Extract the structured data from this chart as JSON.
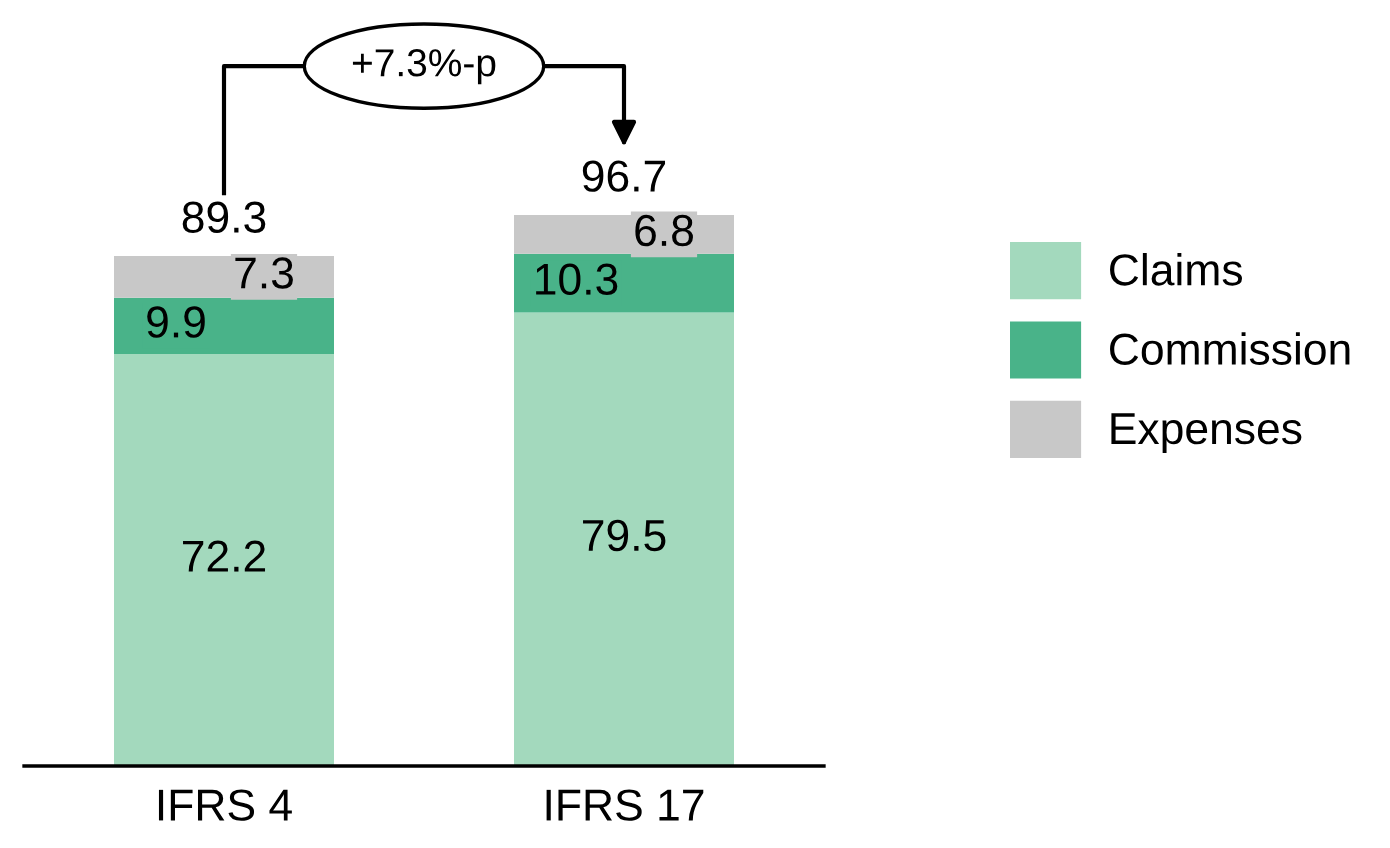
{
  "chart_data": {
    "type": "bar",
    "stacked": true,
    "categories": [
      "IFRS 4",
      "IFRS 17"
    ],
    "series": [
      {
        "name": "Claims",
        "color": "#a3d9bd",
        "values": [
          72.2,
          79.5
        ]
      },
      {
        "name": "Commission",
        "color": "#49b389",
        "values": [
          9.9,
          10.3
        ]
      },
      {
        "name": "Expenses",
        "color": "#c8c8c8",
        "values": [
          7.3,
          6.8
        ]
      }
    ],
    "data_labels": true,
    "totals": [
      "89.3",
      "96.7"
    ],
    "legend": "right",
    "grid": false,
    "annotations": [
      "+7.3%-p"
    ]
  }
}
